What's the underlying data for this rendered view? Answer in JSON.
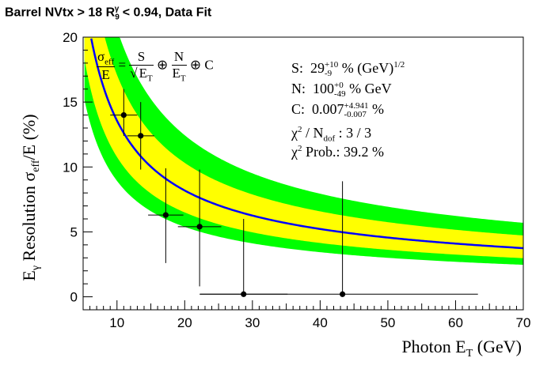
{
  "title": {
    "prefix": "Barrel NVtx > 18 R",
    "sub": "9",
    "sup": "γ",
    "suffix": " < 0.94, Data Fit"
  },
  "formula": {
    "lhs_num": "σ",
    "lhs_num_sub": "eff",
    "lhs_den": "E",
    "eq": "=",
    "s_num": "S",
    "s_den": "E",
    "s_den_sub": "T",
    "oplus": "⊕",
    "n_num": "N",
    "n_den": "E",
    "n_den_sub": "T",
    "c": "C"
  },
  "fit_results": {
    "S": {
      "label": "S:",
      "value": "29",
      "err_up": "+10",
      "err_down": "-9",
      "unit": "% (GeV)",
      "unit_sup": "1/2"
    },
    "N": {
      "label": "N:",
      "value": "100",
      "err_up": "+0",
      "err_down": "-49",
      "unit": "% GeV"
    },
    "C": {
      "label": "C:",
      "value": "0.007",
      "err_up": "+4.941",
      "err_down": "-0.007",
      "unit": "%"
    },
    "chi2": {
      "label": "χ",
      "label_sup": "2",
      "mid": " / N",
      "mid_sub": "dof",
      "value": " : 3 / 3"
    },
    "prob": {
      "label": "χ",
      "label_sup": "2",
      "text": " Prob.: 39.2 %"
    }
  },
  "chart_data": {
    "type": "scatter",
    "xlabel": "Photon E",
    "xlabel_sub": "T",
    "xlabel_unit": " (GeV)",
    "ylabel_prefix": "E",
    "ylabel_sub": "γ",
    "ylabel_mid": " Resolution σ",
    "ylabel_sub2": "eff",
    "ylabel_suffix": "/E (%)",
    "xlim": [
      5,
      70
    ],
    "ylim": [
      -1,
      20
    ],
    "x_ticks": [
      10,
      20,
      30,
      40,
      50,
      60,
      70
    ],
    "y_ticks": [
      0,
      5,
      10,
      15,
      20
    ],
    "grid": false,
    "fit": {
      "S": 29,
      "N": 100,
      "C": 0.007
    },
    "bands": [
      {
        "name": "outer",
        "color": "#00ff00"
      },
      {
        "name": "inner",
        "color": "#ffff00"
      }
    ],
    "curve_color": "#0000ff",
    "points": [
      {
        "x": 11,
        "y": 14.0,
        "xerr_lo": 2,
        "xerr_hi": 2,
        "yerr_lo": 1.6,
        "yerr_hi": 2.0
      },
      {
        "x": 13.5,
        "y": 12.4,
        "xerr_lo": 2,
        "xerr_hi": 2,
        "yerr_lo": 2.6,
        "yerr_hi": 2.6
      },
      {
        "x": 17.2,
        "y": 6.3,
        "xerr_lo": 2.6,
        "xerr_hi": 2.6,
        "yerr_lo": 3.7,
        "yerr_hi": 3.6
      },
      {
        "x": 22.2,
        "y": 5.4,
        "xerr_lo": 3.2,
        "xerr_hi": 3.2,
        "yerr_lo": 4.6,
        "yerr_hi": 4.4
      },
      {
        "x": 28.7,
        "y": 0.2,
        "xerr_lo": 6.5,
        "xerr_hi": 6.5,
        "yerr_lo": 0.2,
        "yerr_hi": 5.8
      },
      {
        "x": 43.3,
        "y": 0.2,
        "xerr_lo": 21,
        "xerr_hi": 20,
        "yerr_lo": 0.2,
        "yerr_hi": 8.7
      }
    ]
  }
}
